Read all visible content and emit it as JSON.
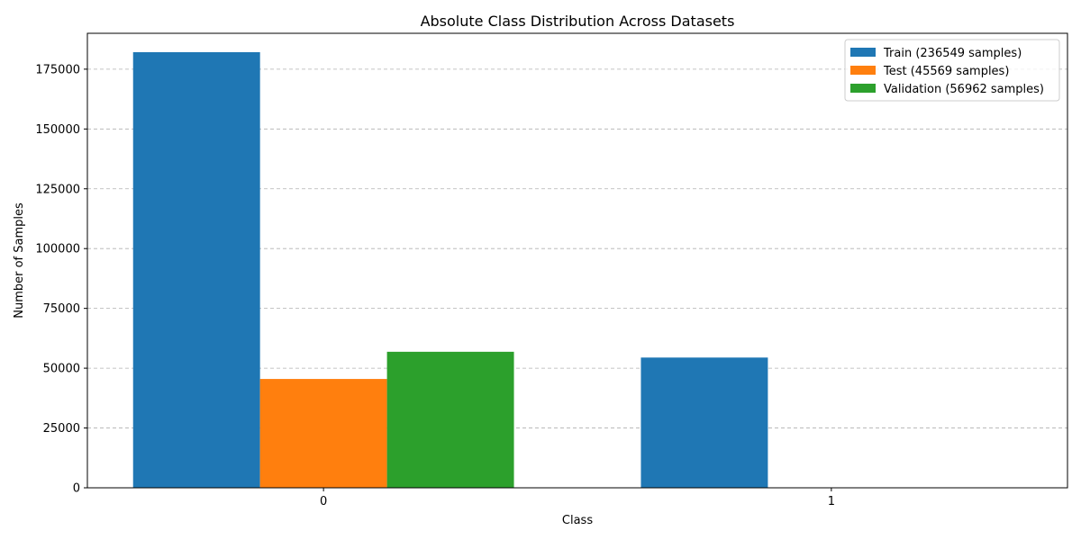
{
  "chart_data": {
    "type": "bar",
    "title": "Absolute Class Distribution Across Datasets",
    "xlabel": "Class",
    "ylabel": "Number of Samples",
    "categories": [
      "0",
      "1"
    ],
    "series": [
      {
        "name": "Train (236549 samples)",
        "values": [
          182100,
          54449
        ],
        "color": "#1f77b4"
      },
      {
        "name": "Test (45569 samples)",
        "values": [
          45500,
          69
        ],
        "color": "#ff7f0e"
      },
      {
        "name": "Validation (56962 samples)",
        "values": [
          56864,
          98
        ],
        "color": "#2ca02c"
      }
    ],
    "ylim": [
      0,
      190000
    ],
    "yticks": [
      0,
      25000,
      50000,
      75000,
      100000,
      125000,
      150000,
      175000
    ],
    "grid": "y-dashed",
    "legend_position": "top-right"
  }
}
